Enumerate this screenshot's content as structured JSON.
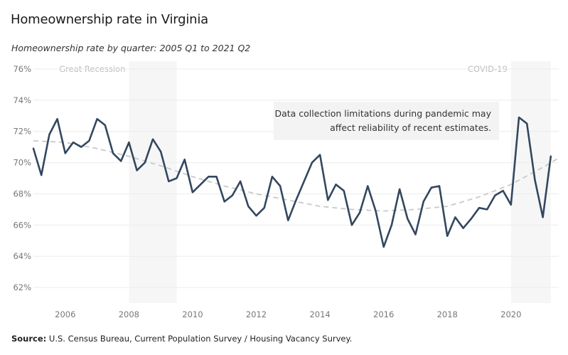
{
  "header": {
    "title": "Homeownership rate in Virginia",
    "subtitle": "Homeownership rate by quarter: 2005 Q1 to 2021 Q2"
  },
  "footer": {
    "source_label": "Source:",
    "source_text": "U.S. Census Bureau, Current Population Survey / Housing Vacancy Survey."
  },
  "colors": {
    "line": "#33475f",
    "trend": "#c9c9c9",
    "shade": "#f6f6f6",
    "grid": "#ececec",
    "annotation_bg": "#f3f3f3"
  },
  "chart_data": {
    "type": "line",
    "title": "Homeownership rate in Virginia",
    "subtitle": "Homeownership rate by quarter: 2005 Q1 to 2021 Q2",
    "xlabel": "",
    "ylabel": "",
    "xlim": [
      2005.0,
      2021.5
    ],
    "ylim": [
      61,
      76.5
    ],
    "x_ticks": [
      2006,
      2008,
      2010,
      2012,
      2014,
      2016,
      2018,
      2020
    ],
    "y_ticks": [
      62,
      64,
      66,
      68,
      70,
      72,
      74,
      76
    ],
    "y_tick_labels": [
      "62%",
      "64%",
      "66%",
      "68%",
      "70%",
      "72%",
      "74%",
      "76%"
    ],
    "grid": "horizontal",
    "shaded_periods": [
      {
        "label": "Great Recession",
        "start": 2008.0,
        "end": 2009.5
      },
      {
        "label": "COVID-19",
        "start": 2020.0,
        "end": 2021.25
      }
    ],
    "annotation": {
      "lines": [
        "Data collection limitations during pandemic may",
        "affect reliability of recent estimates."
      ]
    },
    "series": [
      {
        "x": [
          2005.0,
          2005.25,
          2005.5,
          2005.75,
          2006.0,
          2006.25,
          2006.5,
          2006.75,
          2007.0,
          2007.25,
          2007.5,
          2007.75,
          2008.0,
          2008.25,
          2008.5,
          2008.75,
          2009.0,
          2009.25,
          2009.5,
          2009.75,
          2010.0,
          2010.25,
          2010.5,
          2010.75,
          2011.0,
          2011.25,
          2011.5,
          2011.75,
          2012.0,
          2012.25,
          2012.5,
          2012.75,
          2013.0,
          2013.25,
          2013.5,
          2013.75,
          2014.0,
          2014.25,
          2014.5,
          2014.75,
          2015.0,
          2015.25,
          2015.5,
          2015.75,
          2016.0,
          2016.25,
          2016.5,
          2016.75,
          2017.0,
          2017.25,
          2017.5,
          2017.75,
          2018.0,
          2018.25,
          2018.5,
          2018.75,
          2019.0,
          2019.25,
          2019.5,
          2019.75,
          2020.0,
          2020.25,
          2020.5,
          2020.75,
          2021.0,
          2021.25
        ],
        "values": [
          70.9,
          69.2,
          71.8,
          72.8,
          70.6,
          71.3,
          71.0,
          71.4,
          72.8,
          72.4,
          70.6,
          70.1,
          71.3,
          69.5,
          70.0,
          71.5,
          70.7,
          68.8,
          69.0,
          70.2,
          68.1,
          68.6,
          69.1,
          69.1,
          67.5,
          67.9,
          68.8,
          67.2,
          66.6,
          67.1,
          69.1,
          68.5,
          66.3,
          67.6,
          68.8,
          70.0,
          70.5,
          67.6,
          68.6,
          68.2,
          66.0,
          66.8,
          68.5,
          66.9,
          64.6,
          66.0,
          68.3,
          66.4,
          65.4,
          67.5,
          68.4,
          68.5,
          65.3,
          66.5,
          65.8,
          66.4,
          67.1,
          67.0,
          67.9,
          68.2,
          67.3,
          72.9,
          72.5,
          68.9,
          66.5,
          70.4
        ]
      },
      {
        "trend": true,
        "x": [
          2005.0,
          2006.0,
          2007.0,
          2008.0,
          2009.0,
          2010.0,
          2011.0,
          2012.0,
          2013.0,
          2014.0,
          2015.0,
          2016.0,
          2017.0,
          2018.0,
          2019.0,
          2020.0,
          2021.0,
          2021.5
        ],
        "values": [
          71.4,
          71.3,
          70.9,
          70.4,
          69.8,
          69.1,
          68.5,
          68.0,
          67.6,
          67.2,
          67.0,
          66.9,
          67.0,
          67.2,
          67.8,
          68.6,
          69.7,
          70.3
        ]
      }
    ]
  }
}
